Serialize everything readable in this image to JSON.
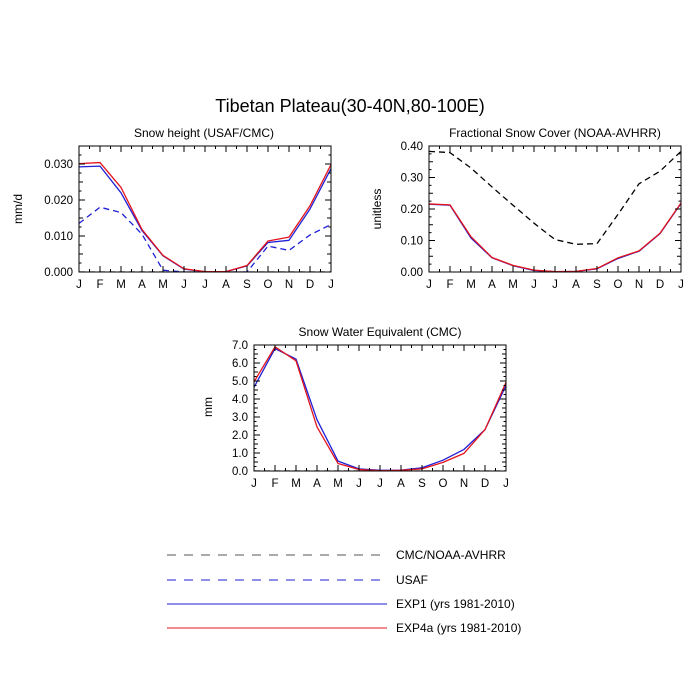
{
  "figure": {
    "title": "Tibetan Plateau(30-40N,80-100E)"
  },
  "colors": {
    "exp1": "#1f1fd6",
    "exp4a": "#e3141c",
    "usaf": "#1f1fd6",
    "obs": "#000000",
    "axis": "#000000"
  },
  "chart_data": [
    {
      "type": "line",
      "title": "Snow height (USAF/CMC)",
      "ylabel": "mm/d",
      "xlabel": "",
      "x": [
        "J",
        "F",
        "M",
        "A",
        "M",
        "J",
        "J",
        "A",
        "S",
        "O",
        "N",
        "D",
        "J"
      ],
      "ylim": [
        0,
        0.035
      ],
      "yticks": [
        0.0,
        0.01,
        0.02,
        0.03
      ],
      "ytick_labels": [
        "0.000",
        "0.010",
        "0.020",
        "0.030"
      ],
      "series": [
        {
          "name": "CMC/NOAA-AVHRR",
          "style": "dashed",
          "color": "#000000",
          "values": [
            0,
            0,
            0,
            0,
            0,
            0,
            0,
            0,
            0,
            0,
            0,
            0,
            0
          ]
        },
        {
          "name": "USAF",
          "style": "dashed",
          "color": "#1f1fd6",
          "values": [
            0.0135,
            0.018,
            0.0165,
            0.0105,
            0.0005,
            0,
            0,
            0,
            0,
            0.0072,
            0.006,
            0.0103,
            0.0132
          ]
        },
        {
          "name": "EXP1 (yrs 1981-2010)",
          "style": "solid",
          "color": "#1f1fd6",
          "values": [
            0.0292,
            0.0294,
            0.022,
            0.0115,
            0.0045,
            0.0008,
            0.0001,
            0.0001,
            0.0017,
            0.0082,
            0.0088,
            0.0175,
            0.0287
          ]
        },
        {
          "name": "EXP4a (yrs 1981-2010)",
          "style": "solid",
          "color": "#e3141c",
          "values": [
            0.0301,
            0.0304,
            0.0235,
            0.0118,
            0.0046,
            0.0009,
            0.0001,
            0.0001,
            0.0018,
            0.0086,
            0.0097,
            0.0184,
            0.0298
          ]
        }
      ]
    },
    {
      "type": "line",
      "title": "Fractional Snow Cover (NOAA-AVHRR)",
      "ylabel": "unitless",
      "xlabel": "",
      "x": [
        "J",
        "F",
        "M",
        "A",
        "M",
        "J",
        "J",
        "A",
        "S",
        "O",
        "N",
        "D",
        "J"
      ],
      "ylim": [
        0,
        0.4
      ],
      "yticks": [
        0.0,
        0.1,
        0.2,
        0.3,
        0.4
      ],
      "ytick_labels": [
        "0.00",
        "0.10",
        "0.20",
        "0.30",
        "0.40"
      ],
      "series": [
        {
          "name": "CMC/NOAA-AVHRR",
          "style": "dashed",
          "color": "#000000",
          "values": [
            0.383,
            0.379,
            0.33,
            0.27,
            0.212,
            0.155,
            0.103,
            0.088,
            0.09,
            0.183,
            0.28,
            0.32,
            0.383
          ]
        },
        {
          "name": "EXP1 (yrs 1981-2010)",
          "style": "solid",
          "color": "#1f1fd6",
          "values": [
            0.215,
            0.212,
            0.108,
            0.045,
            0.02,
            0.005,
            0.001,
            0.002,
            0.01,
            0.043,
            0.066,
            0.122,
            0.218
          ]
        },
        {
          "name": "EXP4a (yrs 1981-2010)",
          "style": "solid",
          "color": "#e3141c",
          "values": [
            0.216,
            0.213,
            0.112,
            0.046,
            0.021,
            0.006,
            0.001,
            0.002,
            0.011,
            0.045,
            0.067,
            0.123,
            0.219
          ]
        }
      ]
    },
    {
      "type": "line",
      "title": "Snow Water Equivalent (CMC)",
      "ylabel": "mm",
      "xlabel": "",
      "x": [
        "J",
        "F",
        "M",
        "A",
        "M",
        "J",
        "J",
        "A",
        "S",
        "O",
        "N",
        "D",
        "J"
      ],
      "ylim": [
        0,
        7.0
      ],
      "yticks": [
        0.0,
        0.5,
        1.0,
        1.5,
        2.0,
        2.5,
        3.0,
        3.5,
        4.0,
        4.5,
        5.0,
        5.5,
        6.0,
        6.5,
        7.0
      ],
      "ytick_labels": [
        "0.0",
        "1.0",
        "2.0",
        "3.0",
        "4.0",
        "5.0",
        "6.0",
        "7.0"
      ],
      "series": [
        {
          "name": "CMC/NOAA-AVHRR",
          "style": "dashed",
          "color": "#000000",
          "values": [
            0,
            0,
            0,
            0,
            0,
            0,
            0,
            0,
            0,
            0,
            0,
            0,
            0
          ]
        },
        {
          "name": "EXP1 (yrs 1981-2010)",
          "style": "solid",
          "color": "#1f1fd6",
          "values": [
            4.65,
            6.8,
            6.22,
            2.85,
            0.55,
            0.12,
            0.04,
            0.05,
            0.18,
            0.6,
            1.2,
            2.3,
            4.75
          ]
        },
        {
          "name": "EXP4a (yrs 1981-2010)",
          "style": "solid",
          "color": "#e3141c",
          "values": [
            4.95,
            6.9,
            6.12,
            2.45,
            0.42,
            0.08,
            0.02,
            0.04,
            0.12,
            0.48,
            0.98,
            2.3,
            4.92
          ]
        }
      ]
    }
  ],
  "legend": [
    {
      "label": "CMC/NOAA-AVHRR",
      "style": "dashed",
      "color": "#555555"
    },
    {
      "label": "USAF",
      "style": "dashed",
      "color": "#1f1fd6"
    },
    {
      "label": "EXP1 (yrs 1981-2010)",
      "style": "solid",
      "color": "#1f1fd6"
    },
    {
      "label": "EXP4a (yrs 1981-2010)",
      "style": "solid",
      "color": "#e3141c"
    }
  ]
}
